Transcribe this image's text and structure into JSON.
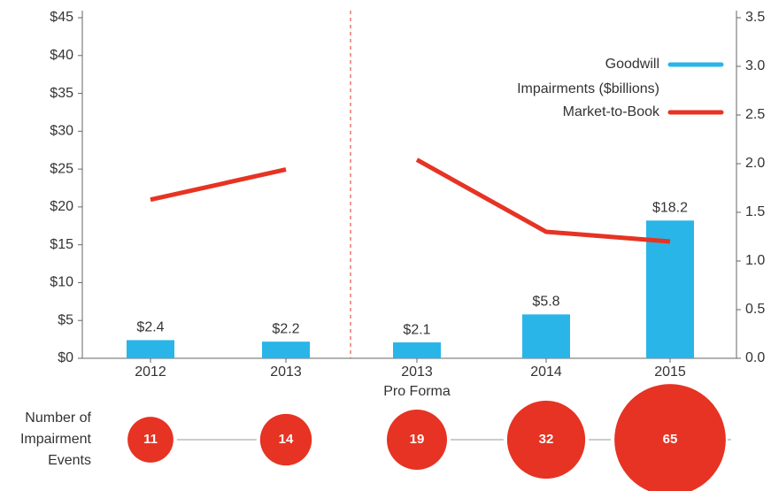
{
  "chart_data": {
    "type": "bar-line",
    "categories": [
      "2012",
      "2013",
      "2013\nPro Forma",
      "2014",
      "2015"
    ],
    "series": [
      {
        "name": "Goodwill\nImpairments ($billions)",
        "type": "bar",
        "color": "#29b5e8",
        "values": [
          2.4,
          2.2,
          2.1,
          5.8,
          18.2
        ],
        "value_labels": [
          "$2.4",
          "$2.2",
          "$2.1",
          "$5.8",
          "$18.2"
        ]
      },
      {
        "name": "Market-to-Book",
        "type": "line",
        "axis": "y2",
        "color": "#e63323",
        "values": [
          1.63,
          1.94,
          2.04,
          1.3,
          1.2
        ]
      }
    ],
    "ylim": [
      0,
      45
    ],
    "yticks": [
      {
        "value": 0,
        "label": "$0"
      },
      {
        "value": 5,
        "label": "$5"
      },
      {
        "value": 10,
        "label": "$10"
      },
      {
        "value": 15,
        "label": "$15"
      },
      {
        "value": 20,
        "label": "$20"
      },
      {
        "value": 25,
        "label": "$25"
      },
      {
        "value": 30,
        "label": "$30"
      },
      {
        "value": 35,
        "label": "$35"
      },
      {
        "value": 40,
        "label": "$40"
      },
      {
        "value": 45,
        "label": "$45"
      }
    ],
    "y2lim": [
      0,
      3.5
    ],
    "y2ticks": [
      {
        "value": 0,
        "label": "0.0"
      },
      {
        "value": 0.5,
        "label": "0.5"
      },
      {
        "value": 1,
        "label": "1.0"
      },
      {
        "value": 1.5,
        "label": "1.5"
      },
      {
        "value": 2,
        "label": "2.0"
      },
      {
        "value": 2.5,
        "label": "2.5"
      },
      {
        "value": 3,
        "label": "3.0"
      },
      {
        "value": 3.5,
        "label": "3.5"
      }
    ],
    "events": {
      "label": "Number of\nImpairment\nEvents",
      "color": "#e63323",
      "values": [
        11,
        14,
        19,
        32,
        65
      ]
    }
  }
}
